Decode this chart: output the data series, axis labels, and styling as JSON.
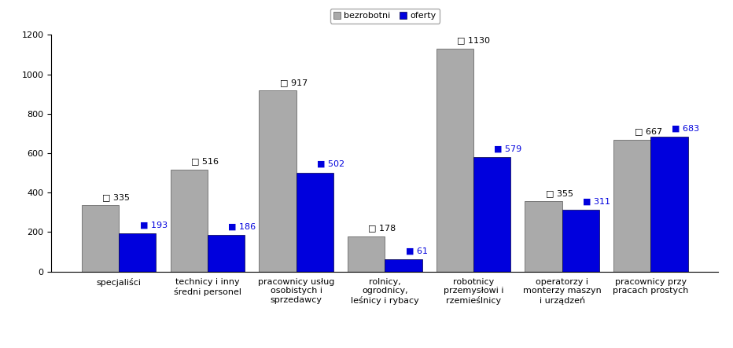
{
  "categories": [
    "specjaliści",
    "technicy i inny\nśredni personel",
    "pracownicy usług\nosobistych i\nsprzedawcy",
    "rolnicy,\nogrodnicy,\nleśnicy i rybacy",
    "robotnicy\nprzemysłowi i\nrzemieślnicy",
    "operatorzy i\nmonterzy maszyn\ni urządzeń",
    "pracownicy przy\npracach prostych"
  ],
  "bezrobotni": [
    335,
    516,
    917,
    178,
    1130,
    355,
    667
  ],
  "oferty": [
    193,
    186,
    502,
    61,
    579,
    311,
    683
  ],
  "bar_color_bezrobotni": "#aaaaaa",
  "bar_color_oferty": "#0000dd",
  "ylim": [
    0,
    1200
  ],
  "yticks": [
    0,
    200,
    400,
    600,
    800,
    1000,
    1200
  ],
  "bar_width": 0.42,
  "label_fontsize": 8,
  "tick_fontsize": 8,
  "legend_fontsize": 8,
  "legend_bezrobotni": "bezrobotni",
  "legend_oferty": "oferty"
}
